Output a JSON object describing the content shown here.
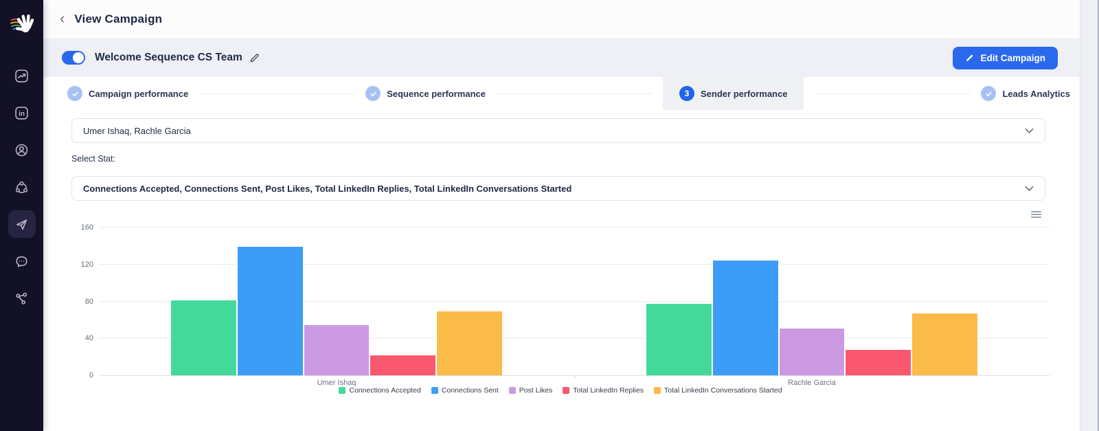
{
  "colors": {
    "accent_blue": "#2a68ee",
    "sidebar_bg": "#131126",
    "band_bg": "#eef0f6",
    "done_step_circle": "#a7c1f3",
    "active_step_bg": "#f0f1f4"
  },
  "sidebar": {
    "icons": [
      "logo-hand-icon",
      "analytics-icon",
      "linkedin-icon",
      "user-icon",
      "network-icon",
      "send-icon",
      "chat-icon",
      "graph-icon"
    ],
    "active_icon": "send-icon"
  },
  "header": {
    "back": "‹",
    "title": "View Campaign"
  },
  "campaign": {
    "name": "Welcome Sequence CS Team",
    "toggle_on": true,
    "edit_button_label": "Edit Campaign"
  },
  "steps": [
    {
      "label": "Campaign performance",
      "state": "done"
    },
    {
      "label": "Sequence performance",
      "state": "done"
    },
    {
      "label": "Sender performance",
      "state": "active",
      "number": "3"
    },
    {
      "label": "Leads Analytics",
      "state": "done"
    }
  ],
  "filters": {
    "senders_value": "Umer Ishaq, Rachle Garcia",
    "stat_label": "Select Stat:",
    "stat_value": "Connections Accepted, Connections Sent, Post Likes, Total LinkedIn Replies, Total LinkedIn Conversations Started"
  },
  "chart_data": {
    "type": "bar",
    "categories": [
      "Umer Ishaq",
      "Rachle Garcia"
    ],
    "series": [
      {
        "name": "Connections Accepted",
        "color": "#43d99b",
        "values": [
          82,
          78
        ]
      },
      {
        "name": "Connections Sent",
        "color": "#3d9df6",
        "values": [
          140,
          125
        ]
      },
      {
        "name": "Post Likes",
        "color": "#cb99e2",
        "values": [
          55,
          51
        ]
      },
      {
        "name": "Total LinkedIn Replies",
        "color": "#f9586e",
        "values": [
          22,
          28
        ]
      },
      {
        "name": "Total LinkedIn Conversations Started",
        "color": "#fbbb49",
        "values": [
          70,
          68
        ]
      }
    ],
    "title": "",
    "xlabel": "",
    "ylabel": "",
    "ylim": [
      0,
      160
    ],
    "yticks": [
      0,
      40,
      80,
      120,
      160
    ],
    "grid": true,
    "legend_position": "bottom",
    "group_width_ratio": 0.7
  }
}
